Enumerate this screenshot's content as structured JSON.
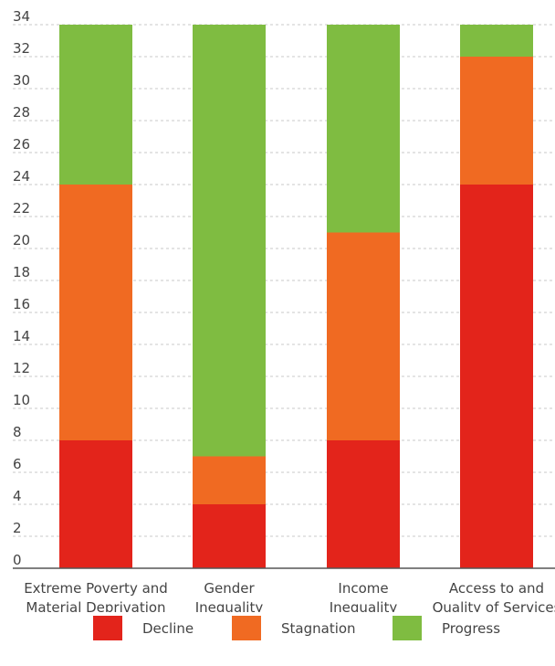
{
  "chart_data": {
    "type": "bar",
    "stacked": true,
    "categories": [
      [
        "Extreme Poverty and",
        "Material Deprivation"
      ],
      [
        "Gender",
        "Inequality"
      ],
      [
        "Income",
        "Inequality"
      ],
      [
        "Access to and",
        "Quality of Services"
      ]
    ],
    "series": [
      {
        "name": "Decline",
        "color": "#e3241b",
        "values": [
          8,
          4,
          8,
          24
        ]
      },
      {
        "name": "Stagnation",
        "color": "#f06a22",
        "values": [
          16,
          3,
          13,
          8
        ]
      },
      {
        "name": "Progress",
        "color": "#7fbc41",
        "values": [
          10,
          27,
          13,
          2
        ]
      }
    ],
    "ylim": [
      0,
      34
    ],
    "yticks": [
      0,
      2,
      4,
      6,
      8,
      10,
      12,
      14,
      16,
      18,
      20,
      22,
      24,
      26,
      28,
      30,
      32,
      34
    ],
    "grid": true,
    "legend_position": "bottom"
  },
  "legend": {
    "decline": "Decline",
    "stagnation": "Stagnation",
    "progress": "Progress"
  }
}
